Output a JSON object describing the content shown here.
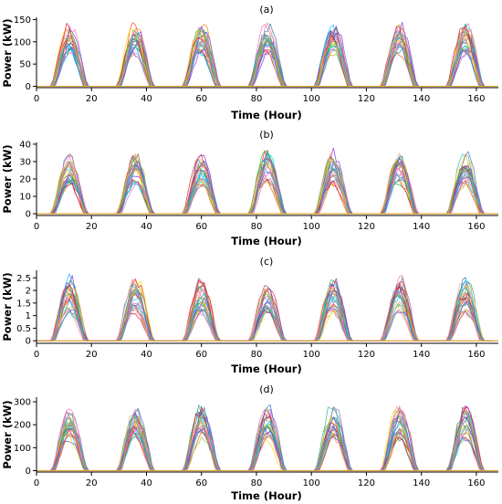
{
  "chart_data": [
    {
      "type": "line",
      "title": "(a)",
      "xlabel": "Time (Hour)",
      "ylabel": "Power (kW)",
      "xlim": [
        0,
        168
      ],
      "ylim": [
        -3,
        155
      ],
      "xticks": [
        0,
        20,
        40,
        60,
        80,
        100,
        120,
        140,
        160
      ],
      "yticks": [
        0,
        50,
        100,
        150
      ],
      "ytick_labels": [
        "0",
        "50",
        "100",
        "150"
      ],
      "day_peak_hours": [
        12,
        36,
        60,
        84,
        108,
        132,
        156
      ],
      "series_count": 25,
      "peak_range": [
        80,
        150
      ],
      "daylight_hours": [
        6,
        18
      ],
      "baseline_color": "#e3a33a"
    },
    {
      "type": "line",
      "title": "(b)",
      "xlabel": "Time (Hour)",
      "ylabel": "Power (kW)",
      "xlim": [
        0,
        168
      ],
      "ylim": [
        -1,
        41
      ],
      "xticks": [
        0,
        20,
        40,
        60,
        80,
        100,
        120,
        140,
        160
      ],
      "yticks": [
        0,
        10,
        20,
        30,
        40
      ],
      "ytick_labels": [
        "0",
        "10",
        "20",
        "30",
        "40"
      ],
      "day_peak_hours": [
        12,
        36,
        60,
        84,
        108,
        132,
        156
      ],
      "series_count": 25,
      "peak_range": [
        18,
        38
      ],
      "daylight_hours": [
        6,
        18
      ],
      "baseline_color": "#e3a33a"
    },
    {
      "type": "line",
      "title": "(c)",
      "xlabel": "Time (Hour)",
      "ylabel": "Power (kW)",
      "xlim": [
        0,
        168
      ],
      "ylim": [
        -0.1,
        2.8
      ],
      "xticks": [
        0,
        20,
        40,
        60,
        80,
        100,
        120,
        140,
        160
      ],
      "yticks": [
        0,
        0.5,
        1,
        1.5,
        2,
        2.5
      ],
      "ytick_labels": [
        "0",
        "0.5",
        "1",
        "1.5",
        "2",
        "2.5"
      ],
      "day_peak_hours": [
        12,
        36,
        60,
        84,
        108,
        132,
        156
      ],
      "series_count": 25,
      "peak_range": [
        1.2,
        2.7
      ],
      "daylight_hours": [
        6,
        18
      ],
      "baseline_color": "#e3a33a"
    },
    {
      "type": "line",
      "title": "(d)",
      "xlabel": "Time (Hour)",
      "ylabel": "Power (kW)",
      "xlim": [
        0,
        168
      ],
      "ylim": [
        -6,
        320
      ],
      "xticks": [
        0,
        20,
        40,
        60,
        80,
        100,
        120,
        140,
        160
      ],
      "yticks": [
        0,
        100,
        200,
        300
      ],
      "ytick_labels": [
        "0",
        "100",
        "200",
        "300"
      ],
      "day_peak_hours": [
        12,
        36,
        60,
        84,
        108,
        132,
        156
      ],
      "series_count": 25,
      "peak_range": [
        150,
        305
      ],
      "daylight_hours": [
        6,
        18
      ],
      "baseline_color": "#e3a33a"
    }
  ],
  "palette": [
    "#1f77b4",
    "#ff7f0e",
    "#2ca02c",
    "#d62728",
    "#9467bd",
    "#8c564b",
    "#e377c2",
    "#7f7f7f",
    "#bcbd22",
    "#17becf",
    "#ff69b4",
    "#00bfff",
    "#32cd32",
    "#ff4500",
    "#8a2be2",
    "#ffd700",
    "#20b2aa",
    "#dc143c",
    "#4169e1",
    "#ffa07a",
    "#9acd32",
    "#da70d6",
    "#00ced1",
    "#f08080",
    "#6a5acd"
  ]
}
